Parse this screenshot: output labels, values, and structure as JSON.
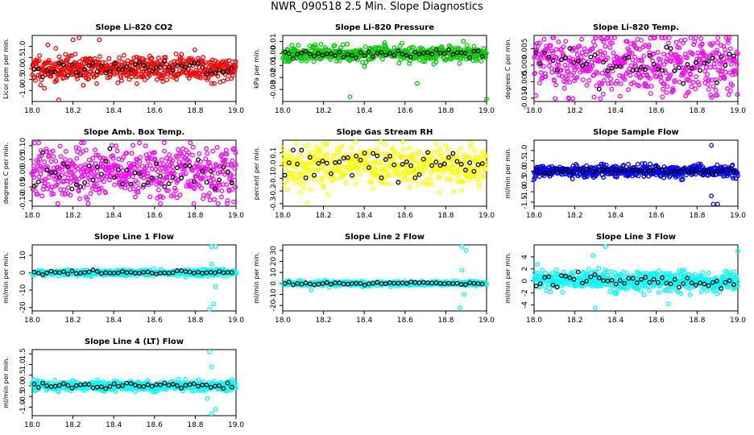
{
  "page_title": "NWR_090518  2.5 Min. Slope Diagnostics",
  "colors": {
    "black": "#000000"
  },
  "chart_data": [
    {
      "type": "scatter",
      "title": "Slope Li-820 CO2",
      "ylabel": "Licor ppm per min.",
      "xlim": [
        18.0,
        19.0
      ],
      "ylim": [
        -1.5,
        1.5
      ],
      "yticks": [
        -1.0,
        -0.5,
        0.0,
        0.5,
        1.0
      ],
      "xticks": [
        18.0,
        18.2,
        18.4,
        18.6,
        18.8,
        19.0
      ],
      "color": "#ff0000",
      "spread": 0.3,
      "seed": 11,
      "outliers": [
        [
          18.2,
          1.3
        ],
        [
          18.23,
          1.4
        ],
        [
          18.13,
          -1.45
        ],
        [
          18.33,
          1.3
        ],
        [
          18.06,
          -0.9
        ]
      ]
    },
    {
      "type": "scatter",
      "title": "Slope Li-820 Pressure",
      "ylabel": "kPa per min.",
      "xlim": [
        18.0,
        19.0
      ],
      "ylim": [
        -0.04,
        0.015
      ],
      "yticks": [
        -0.03,
        -0.02,
        -0.01,
        0.0,
        0.01
      ],
      "xticks": [
        18.0,
        18.2,
        18.4,
        18.6,
        18.8,
        19.0
      ],
      "color": "#00cc00",
      "spread": 0.003,
      "seed": 23,
      "outliers": [
        [
          18.33,
          -0.036
        ],
        [
          18.66,
          -0.025
        ],
        [
          19.0,
          -0.038
        ],
        [
          18.5,
          0.009
        ]
      ]
    },
    {
      "type": "scatter",
      "title": "Slope Li-820 Temp.",
      "ylabel": "degrees C per min.",
      "xlim": [
        18.0,
        19.0
      ],
      "ylim": [
        -0.011,
        0.009
      ],
      "yticks": [
        -0.01,
        -0.005,
        0.0,
        0.005
      ],
      "xticks": [
        18.0,
        18.2,
        18.4,
        18.6,
        18.8,
        19.0
      ],
      "color": "#ff00ff",
      "spread": 0.0045,
      "seed": 37,
      "outliers": []
    },
    {
      "type": "scatter",
      "title": "Slope Amb. Box Temp.",
      "ylabel": "degrees C per min.",
      "xlim": [
        18.0,
        19.0
      ],
      "ylim": [
        -0.12,
        0.12
      ],
      "yticks": [
        -0.1,
        -0.05,
        0.0,
        0.05,
        0.1
      ],
      "xticks": [
        18.0,
        18.2,
        18.4,
        18.6,
        18.8,
        19.0
      ],
      "color": "#ff00ff",
      "spread": 0.05,
      "seed": 41,
      "outliers": []
    },
    {
      "type": "scatter",
      "title": "Slope Gas Stream RH",
      "ylabel": "percent per min.",
      "xlim": [
        18.0,
        19.0
      ],
      "ylim": [
        -0.32,
        0.2
      ],
      "yticks": [
        -0.3,
        -0.2,
        -0.1,
        0.0,
        0.1
      ],
      "xticks": [
        18.0,
        18.2,
        18.4,
        18.6,
        18.8,
        19.0
      ],
      "color": "#ffff00",
      "spread": 0.08,
      "seed": 53,
      "outliers": [
        [
          18.12,
          -0.3
        ],
        [
          18.2,
          0.17
        ]
      ]
    },
    {
      "type": "scatter",
      "title": "Slope Sample Flow",
      "ylabel": "ml/min per min.",
      "xlim": [
        18.0,
        19.0
      ],
      "ylim": [
        -1.7,
        1.5
      ],
      "yticks": [
        -1.5,
        -1.0,
        -0.5,
        0.0,
        0.5,
        1.0
      ],
      "xticks": [
        18.0,
        18.2,
        18.4,
        18.6,
        18.8,
        19.0
      ],
      "color": "#0000ff",
      "spread": 0.13,
      "seed": 67,
      "outliers": [
        [
          18.87,
          1.25
        ],
        [
          18.88,
          -1.6
        ],
        [
          18.9,
          -1.6
        ],
        [
          18.87,
          -1.2
        ],
        [
          18.0,
          -0.4
        ]
      ]
    },
    {
      "type": "scatter",
      "title": "Slope Line 1 Flow",
      "ylabel": "ml/min per min.",
      "xlim": [
        18.0,
        19.0
      ],
      "ylim": [
        -22,
        16
      ],
      "yticks": [
        -20,
        -10,
        0,
        10
      ],
      "xticks": [
        18.0,
        18.2,
        18.4,
        18.6,
        18.8,
        19.0
      ],
      "color": "#00ffff",
      "spread": 0.8,
      "seed": 71,
      "outliers": [
        [
          18.88,
          15
        ],
        [
          18.9,
          15
        ],
        [
          18.87,
          -21
        ],
        [
          18.89,
          -18
        ],
        [
          18.88,
          5
        ],
        [
          18.9,
          -8
        ]
      ]
    },
    {
      "type": "scatter",
      "title": "Slope Line 2 Flow",
      "ylabel": "ml/min per min.",
      "xlim": [
        18.0,
        19.0
      ],
      "ylim": [
        -25,
        35
      ],
      "yticks": [
        -20,
        -10,
        0,
        10,
        20,
        30
      ],
      "xticks": [
        18.0,
        18.2,
        18.4,
        18.6,
        18.8,
        19.0
      ],
      "color": "#00ffff",
      "spread": 1.0,
      "seed": 83,
      "outliers": [
        [
          18.88,
          34
        ],
        [
          18.9,
          30
        ],
        [
          18.87,
          -22
        ],
        [
          18.89,
          -10
        ],
        [
          18.88,
          12
        ],
        [
          18.14,
          -6
        ]
      ]
    },
    {
      "type": "scatter",
      "title": "Slope Line 3 Flow",
      "ylabel": "ml/min per min.",
      "xlim": [
        18.0,
        19.0
      ],
      "ylim": [
        -5,
        6
      ],
      "yticks": [
        -4,
        -2,
        0,
        2,
        4
      ],
      "xticks": [
        18.0,
        18.2,
        18.4,
        18.6,
        18.8,
        19.0
      ],
      "color": "#00ffff",
      "spread": 0.9,
      "seed": 97,
      "outliers": [
        [
          18.35,
          6
        ],
        [
          18.3,
          -4.5
        ],
        [
          18.29,
          4.2
        ],
        [
          18.66,
          -3.8
        ],
        [
          19.0,
          5
        ]
      ]
    },
    {
      "type": "scatter",
      "title": "Slope Line 4 (LT) Flow",
      "ylabel": "ml/min per min.",
      "xlim": [
        18.0,
        19.0
      ],
      "ylim": [
        -1.4,
        1.7
      ],
      "yticks": [
        -1.0,
        -0.5,
        0.0,
        0.5,
        1.0,
        1.5
      ],
      "xticks": [
        18.0,
        18.2,
        18.4,
        18.6,
        18.8,
        19.0
      ],
      "color": "#00ffff",
      "spread": 0.11,
      "seed": 101,
      "outliers": [
        [
          18.87,
          1.6
        ],
        [
          18.88,
          -1.3
        ],
        [
          18.9,
          -1.1
        ],
        [
          18.86,
          -0.6
        ],
        [
          18.88,
          0.9
        ]
      ]
    }
  ]
}
